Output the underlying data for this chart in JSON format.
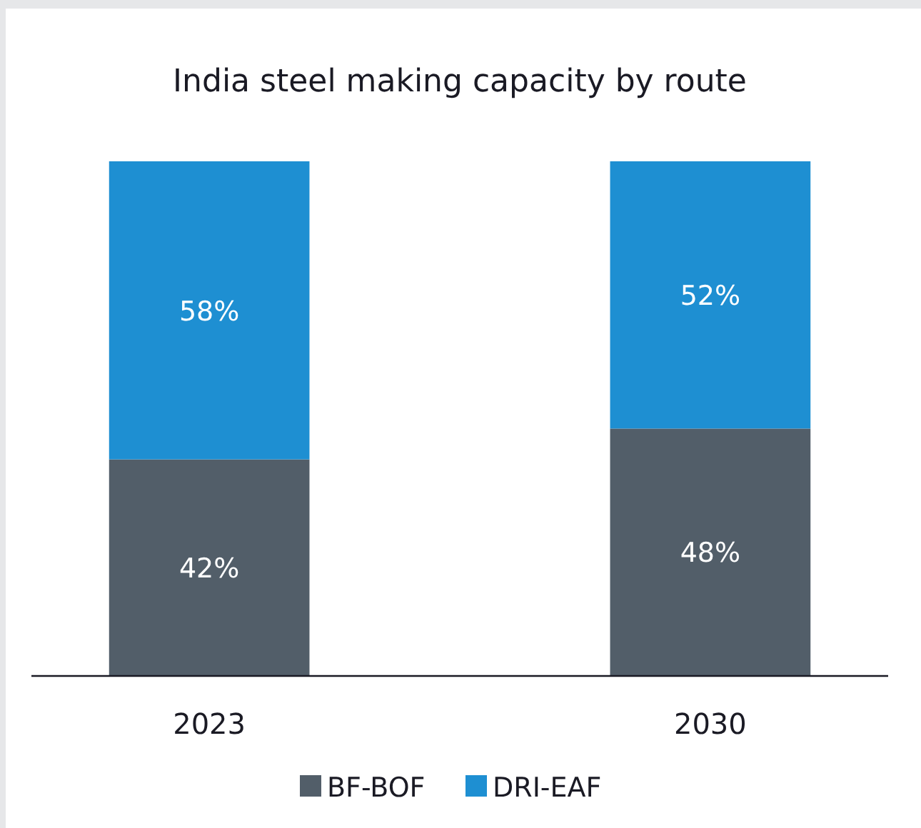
{
  "chart_data": {
    "type": "bar",
    "title": "India steel making capacity by route",
    "categories": [
      "2023",
      "2030"
    ],
    "stacked": true,
    "data_labels": true,
    "legend": "bottom",
    "series": [
      {
        "name": "BF-BOF",
        "color": "#525e69",
        "values": [
          42,
          48
        ],
        "value_labels": [
          "42%",
          "48%"
        ]
      },
      {
        "name": "DRI-EAF",
        "color": "#1e8fd2",
        "values": [
          58,
          52
        ],
        "value_labels": [
          "58%",
          "52%"
        ]
      }
    ]
  }
}
